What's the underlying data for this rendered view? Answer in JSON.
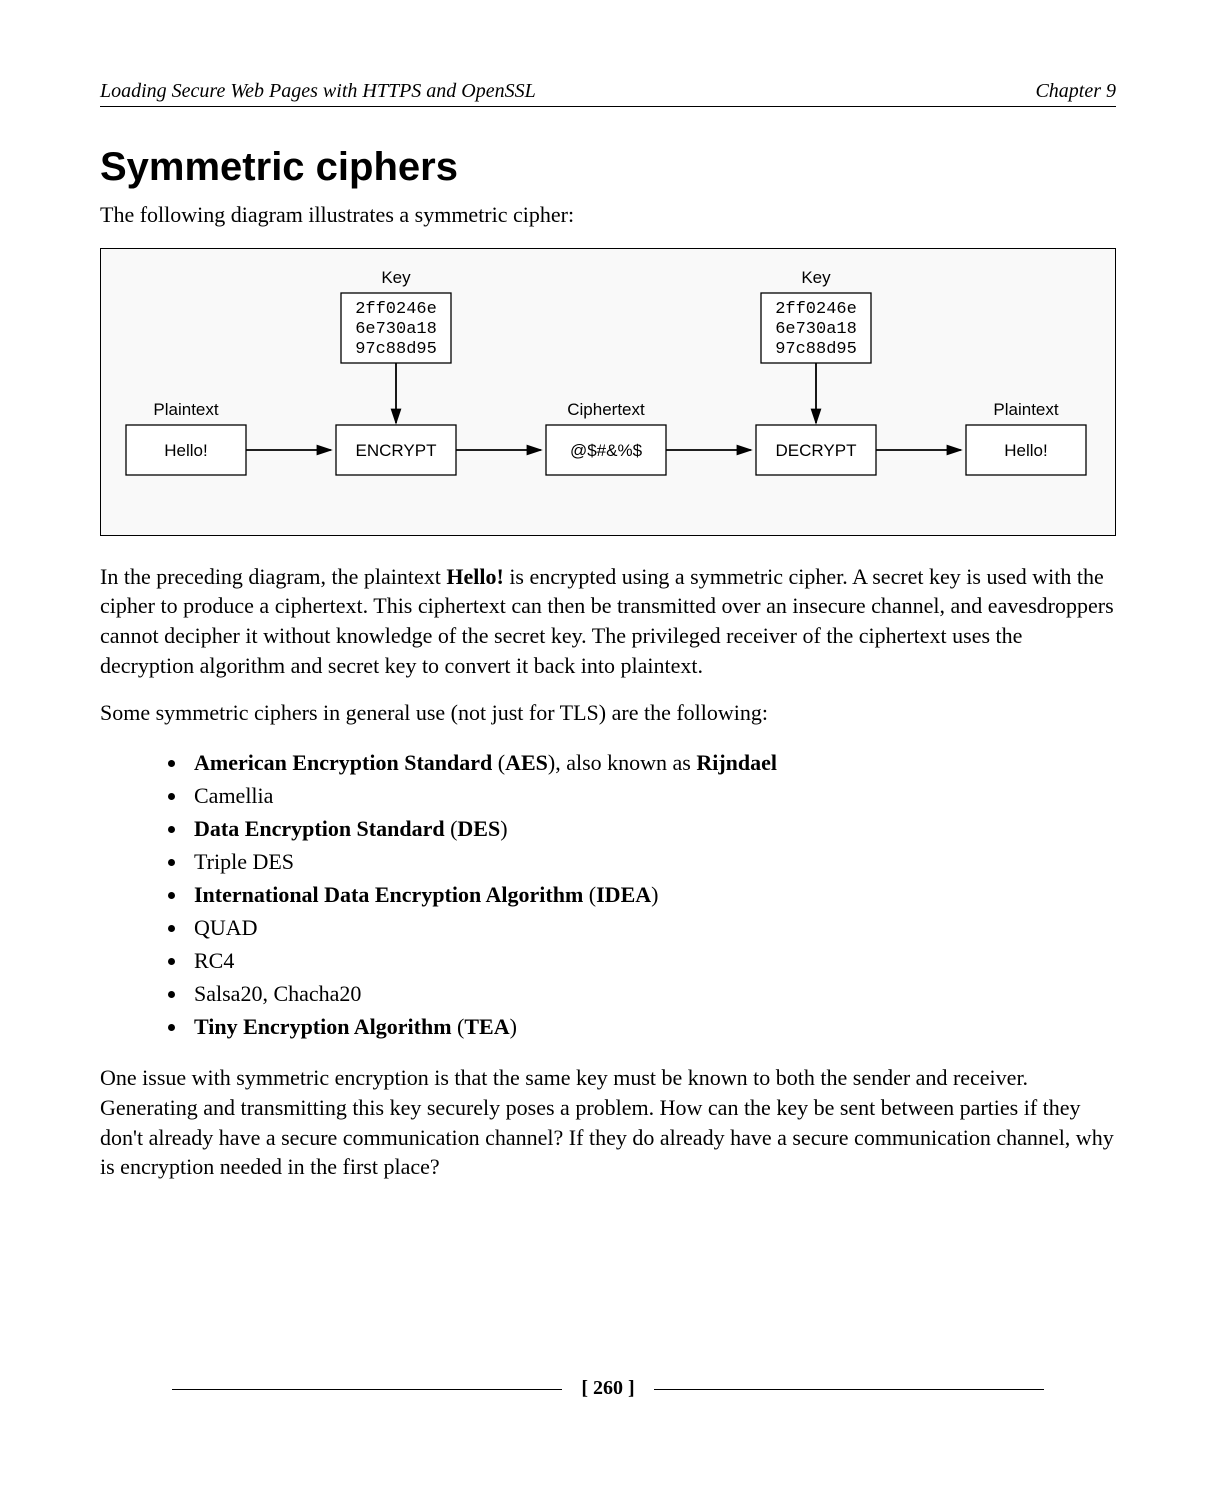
{
  "header": {
    "left": "Loading Secure Web Pages with HTTPS and OpenSSL",
    "right": "Chapter 9"
  },
  "title": "Symmetric ciphers",
  "intro": "The following diagram illustrates a symmetric cipher:",
  "diagram": {
    "key_label": "Key",
    "key_lines": [
      "2ff0246e",
      "6e730a18",
      "97c88d95"
    ],
    "plaintext_label": "Plaintext",
    "ciphertext_label": "Ciphertext",
    "plaintext_value": "Hello!",
    "ciphertext_value": "@$#&%$",
    "encrypt_label": "ENCRYPT",
    "decrypt_label": "DECRYPT"
  },
  "para1_pre": "In the preceding diagram, the plaintext ",
  "para1_bold": "Hello!",
  "para1_post": " is encrypted using a symmetric cipher. A secret key is used with the cipher to produce a ciphertext. This ciphertext can then be transmitted over an insecure channel, and eavesdroppers cannot decipher it without knowledge of the secret key. The privileged receiver of the ciphertext uses the decryption algorithm and secret key to convert it back into plaintext.",
  "para2": "Some symmetric ciphers in general use (not just for TLS) are the following:",
  "list": [
    {
      "pre": "",
      "b1": "American Encryption Standard",
      "mid": " (",
      "b2": "AES",
      "post": "), also known as ",
      "b3": "Rijndael",
      "tail": ""
    },
    {
      "plain": "Camellia"
    },
    {
      "pre": "",
      "b1": "Data Encryption Standard",
      "mid": " (",
      "b2": "DES",
      "post": ")",
      "tail": ""
    },
    {
      "plain": "Triple DES"
    },
    {
      "pre": "",
      "b1": "International Data Encryption Algorithm",
      "mid": " (",
      "b2": "IDEA",
      "post": ")",
      "tail": ""
    },
    {
      "plain": "QUAD"
    },
    {
      "plain": "RC4"
    },
    {
      "plain": "Salsa20, Chacha20"
    },
    {
      "pre": "",
      "b1": "Tiny Encryption Algorithm",
      "mid": " (",
      "b2": "TEA",
      "post": ")",
      "tail": ""
    }
  ],
  "para3": "One issue with symmetric encryption is that the same key must be known to both the sender and receiver. Generating and transmitting this key securely poses a problem. How can the key be sent between parties if they don't already have a secure communication channel? If they do already have a secure communication channel, why is encryption needed in the first place?",
  "page_number": "[ 260 ]"
}
